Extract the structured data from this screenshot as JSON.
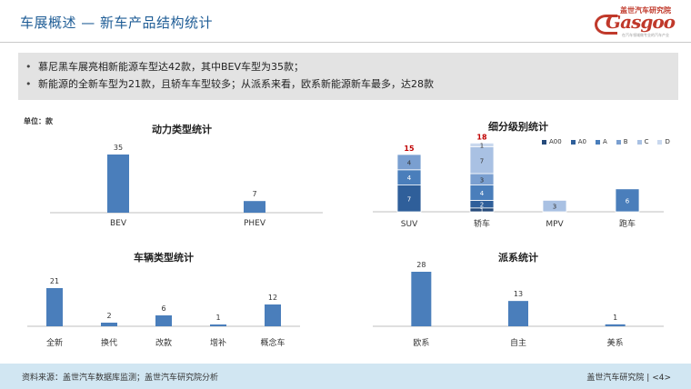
{
  "header": {
    "title": "车展概述 — 新车产品结构统计",
    "logo_cn": "盖世汽车研究院",
    "logo_en": "Gasgoo",
    "logo_sub": "在汽车领域做专业的汽车产业"
  },
  "summary": [
    "慕尼黑车展亮相新能源车型达42款，其中BEV车型为35款；",
    "新能源的全新车型为21款，且轿车车型较多；从派系来看，欧系新能源新车最多，达28款"
  ],
  "unit_label": "单位：款",
  "footer": {
    "source": "资料来源：盖世汽车数据库监测；盖世汽车研究院分析",
    "org": "盖世汽车研究院",
    "page": "<4>"
  },
  "colors": {
    "bar": "#4a7ebb",
    "A00": "#254a7a",
    "A0": "#2f5f9a",
    "A": "#4a7ebb",
    "B": "#7a9fd0",
    "C": "#a9c1e3",
    "D": "#c9d8ee",
    "total_label": "#c00000"
  },
  "chart_data": [
    {
      "id": "power",
      "type": "bar",
      "title": "动力类型统计",
      "categories": [
        "BEV",
        "PHEV"
      ],
      "values": [
        35,
        7
      ]
    },
    {
      "id": "segment",
      "type": "bar",
      "stacked": true,
      "title": "细分级别统计",
      "categories": [
        "SUV",
        "轿车",
        "MPV",
        "跑车"
      ],
      "series": [
        {
          "name": "A00",
          "values": [
            null,
            1,
            null,
            null
          ]
        },
        {
          "name": "A0",
          "values": [
            7,
            2,
            null,
            null
          ]
        },
        {
          "name": "A",
          "values": [
            4,
            4,
            null,
            6
          ]
        },
        {
          "name": "B",
          "values": [
            4,
            3,
            null,
            null
          ]
        },
        {
          "name": "C",
          "values": [
            null,
            7,
            3,
            null
          ]
        },
        {
          "name": "D",
          "values": [
            null,
            1,
            null,
            null
          ]
        }
      ],
      "totals": [
        15,
        18,
        null,
        null
      ]
    },
    {
      "id": "vehicle",
      "type": "bar",
      "title": "车辆类型统计",
      "categories": [
        "全新",
        "换代",
        "改款",
        "增补",
        "概念车"
      ],
      "values": [
        21,
        2,
        6,
        1,
        12
      ]
    },
    {
      "id": "origin",
      "type": "bar",
      "title": "派系统计",
      "categories": [
        "欧系",
        "自主",
        "美系"
      ],
      "values": [
        28,
        13,
        1
      ]
    }
  ]
}
